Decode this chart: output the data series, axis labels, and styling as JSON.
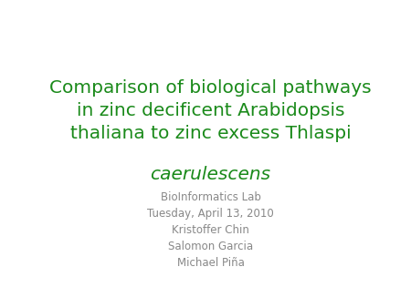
{
  "background_color": "#ffffff",
  "title_line1": "Comparison of biological pathways",
  "title_line2": "in zinc decificent Arabidopsis",
  "title_line3": "thaliana to zinc excess Thlaspi",
  "title_line4_italic": "caerulescens",
  "title_color": "#1a8a1a",
  "title_fontsize": 14.5,
  "subtitle_lines": [
    "BioInformatics Lab",
    "Tuesday, April 13, 2010",
    "Kristoffer Chin",
    "Salomon Garcia",
    "Michael Piña"
  ],
  "subtitle_color": "#888888",
  "subtitle_fontsize": 8.5
}
